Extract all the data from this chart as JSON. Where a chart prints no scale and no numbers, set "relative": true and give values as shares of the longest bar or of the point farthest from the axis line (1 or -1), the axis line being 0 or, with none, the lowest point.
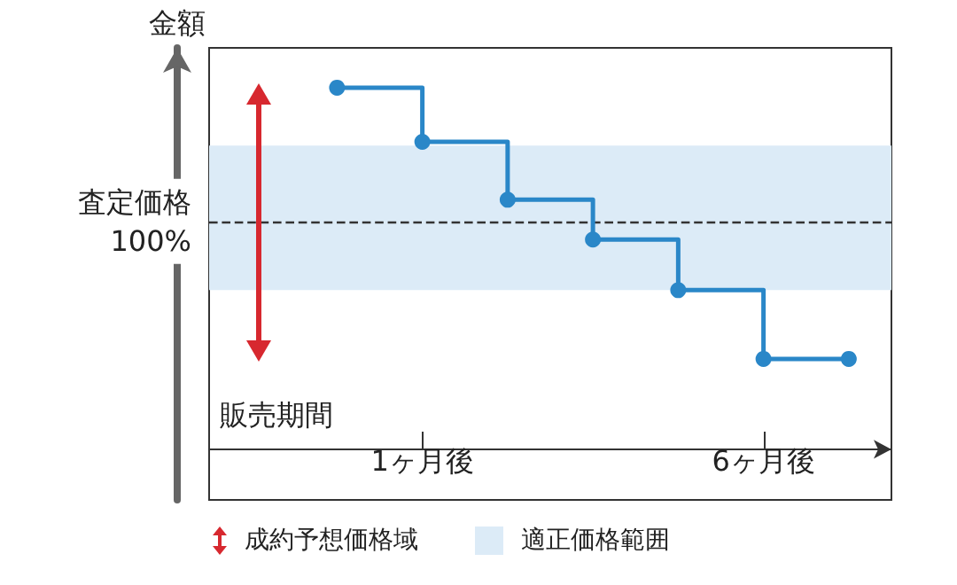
{
  "chart_data": {
    "type": "step",
    "relative": true,
    "ylabel": "金額",
    "xlabel": "販売期間",
    "categories": [
      null,
      null,
      "1ヶ月後",
      null,
      null,
      null,
      "6ヶ月後",
      null
    ],
    "values": [
      null,
      1,
      0.85,
      0.69,
      0.58,
      0.44,
      0.25,
      0.25
    ],
    "color": "#2a87c8",
    "marker": "circle",
    "line_style": "solid",
    "ref_lines": [
      {
        "axis": "y",
        "value": 0.63,
        "label": "査定価格\n100%",
        "color": "#333333",
        "line_style": "dashed"
      }
    ],
    "bands": [
      {
        "axis": "y",
        "from": 0.44,
        "to": 0.84,
        "label": "適正価格範囲",
        "color": "#dcebf7"
      }
    ],
    "annotations": [
      "成約予想価格域"
    ]
  }
}
